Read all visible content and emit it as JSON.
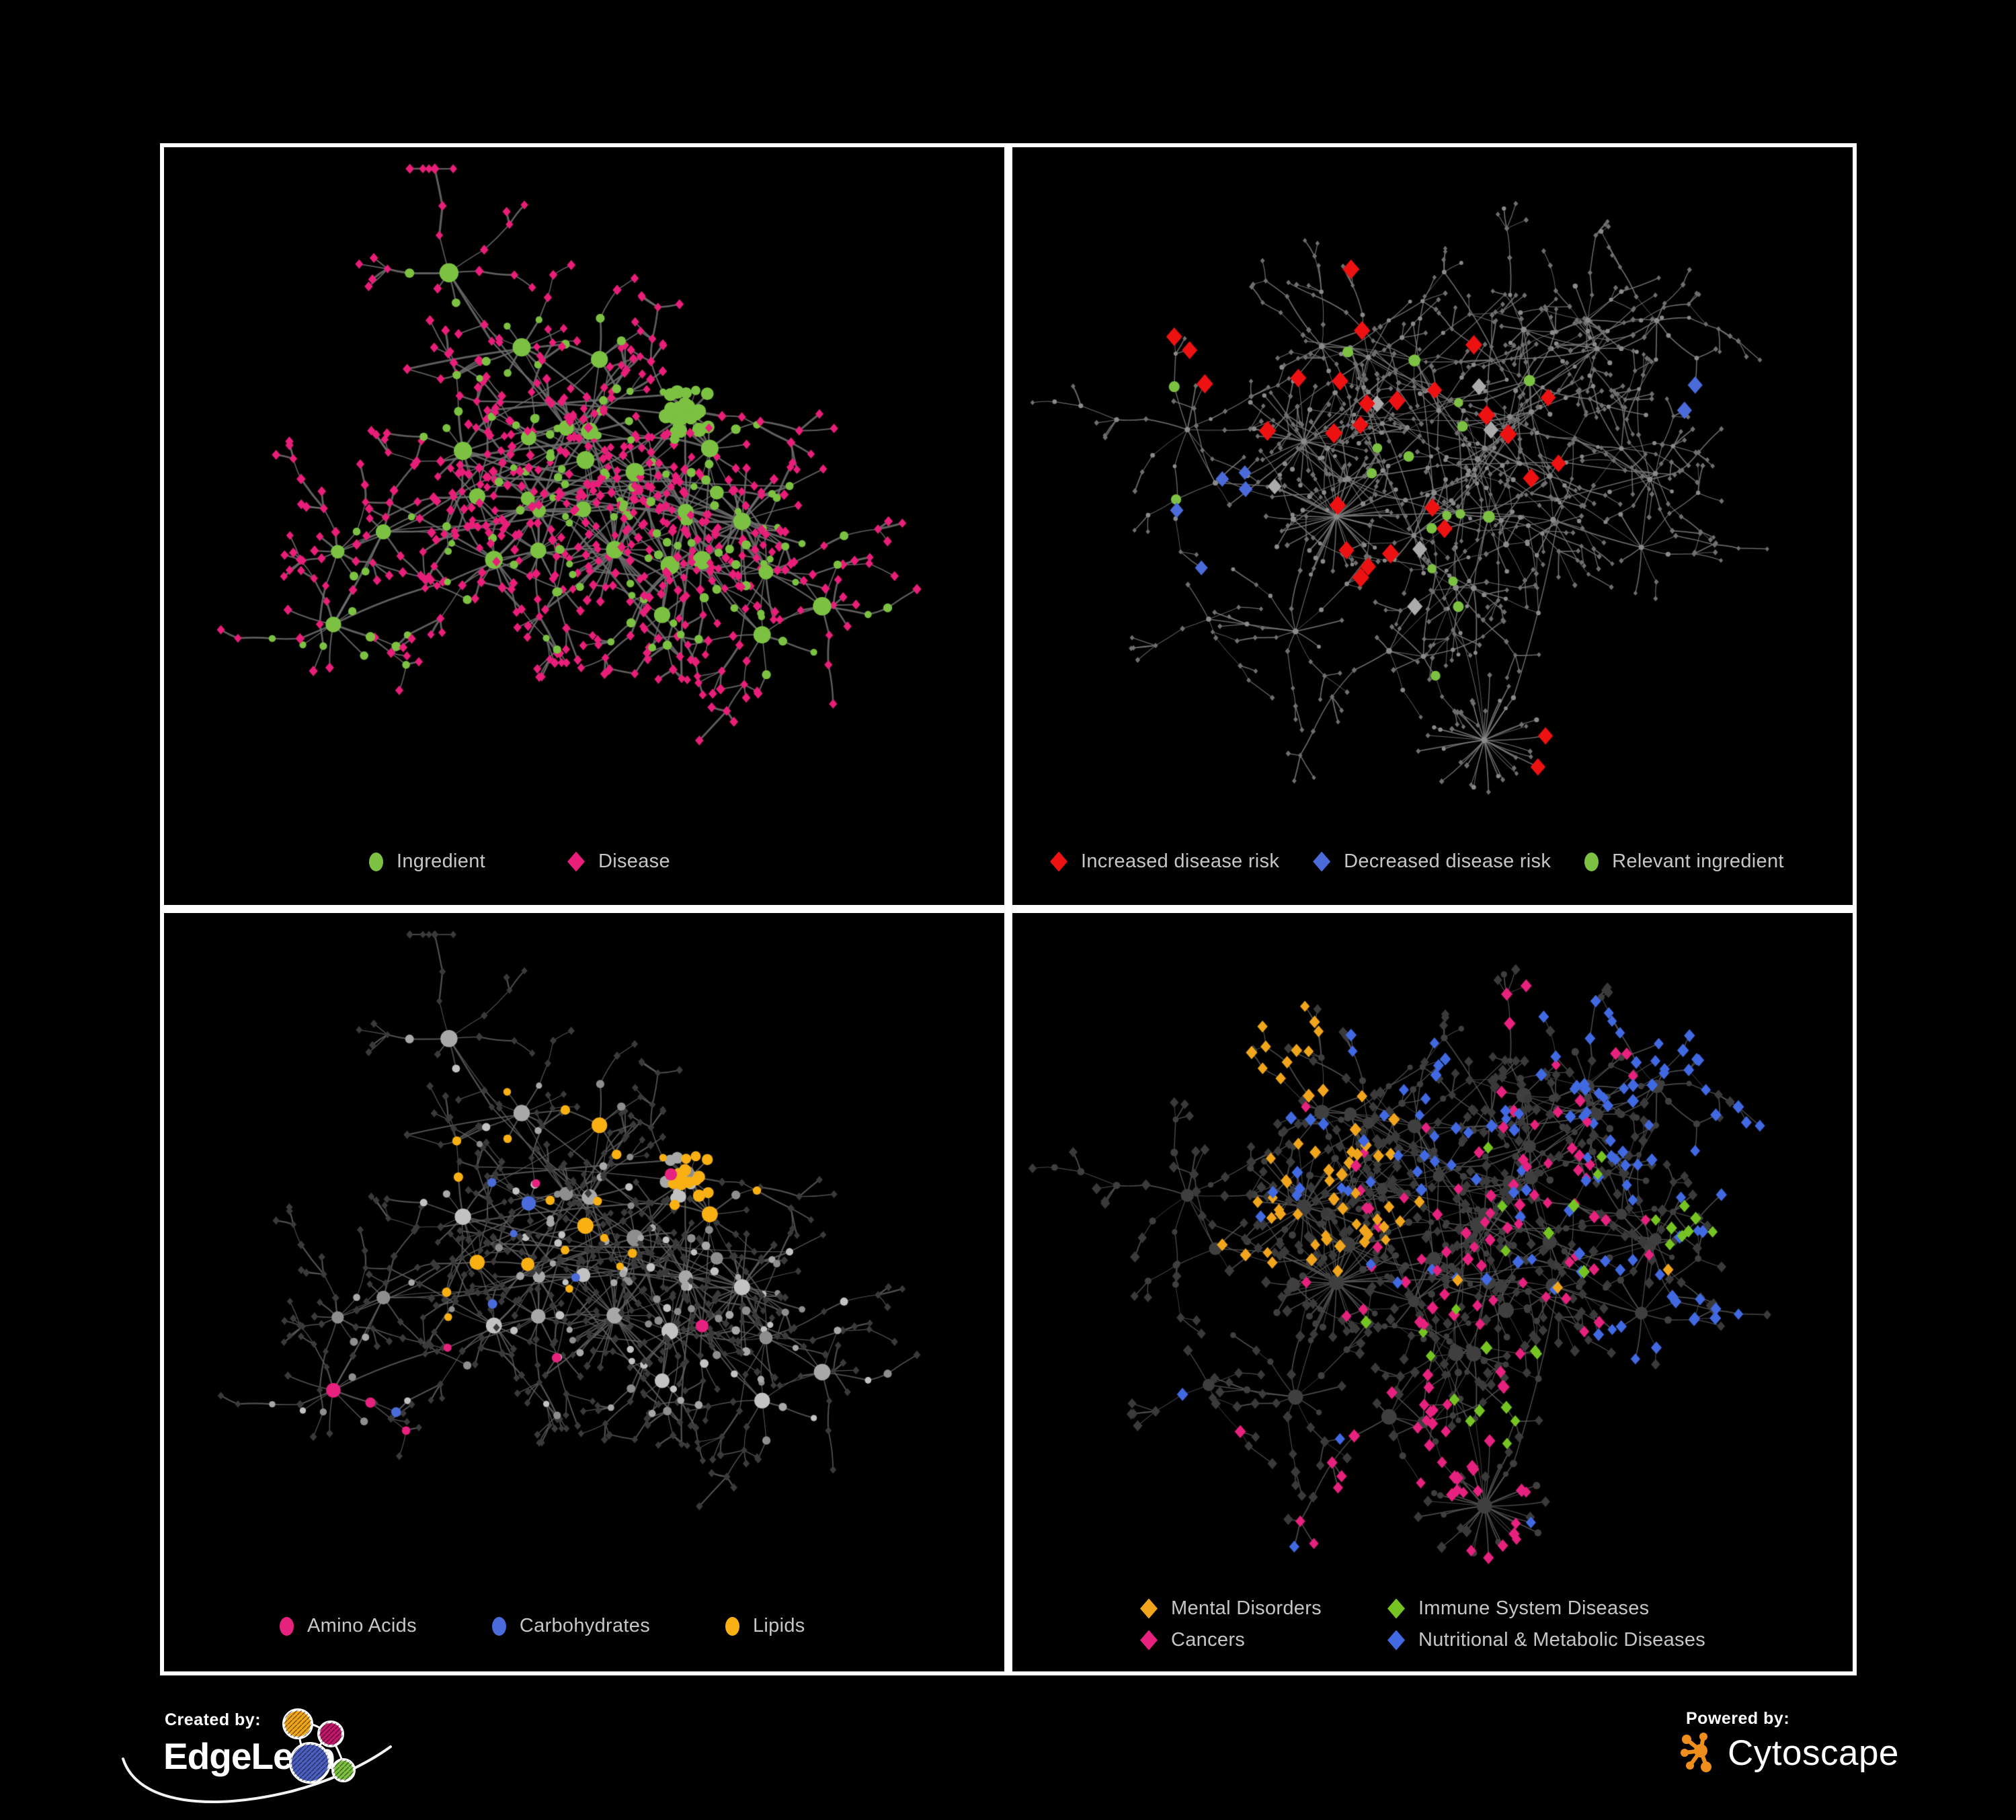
{
  "page": {
    "background": "#000000",
    "panel_border": "#ffffff",
    "legend_text_color": "#c6c6c6"
  },
  "panels": [
    {
      "name": "ingredient-disease-network",
      "legend": [
        {
          "shape": "circle",
          "color": "#7cc142",
          "label": "Ingredient"
        },
        {
          "shape": "diamond",
          "color": "#e81e79",
          "label": "Disease"
        }
      ],
      "net": {
        "layout": "A",
        "style": "ingredient_disease",
        "edge_color": "#6f6f6f",
        "edge_width": 2.1,
        "circle_color": "#7cc142",
        "diamond_color": "#e81e79"
      }
    },
    {
      "name": "disease-risk-network",
      "legend": [
        {
          "shape": "diamond",
          "color": "#ee1111",
          "label": "Increased disease risk"
        },
        {
          "shape": "diamond",
          "color": "#4a6bd9",
          "label": "Decreased disease risk"
        },
        {
          "shape": "circle",
          "color": "#7cc142",
          "label": "Relevant ingredient"
        }
      ],
      "net": {
        "layout": "B",
        "style": "risk",
        "edge_color": "#7b7b7b",
        "edge_width": 1.2,
        "base_circle": "#8a8a8a",
        "base_diamond": "#6f6f6f",
        "red": "#ee1111",
        "blue": "#4a6bd9",
        "green": "#7cc142",
        "silver": "#ababab"
      }
    },
    {
      "name": "nutrient-class-network",
      "legend": [
        {
          "shape": "circle",
          "color": "#e6217e",
          "label": "Amino Acids"
        },
        {
          "shape": "circle",
          "color": "#4a6bd9",
          "label": "Carbohydrates"
        },
        {
          "shape": "circle",
          "color": "#f9b013",
          "label": "Lipids"
        }
      ],
      "net": {
        "layout": "A",
        "style": "nutrients",
        "edge_color": "#5f5f5f",
        "edge_width": 1.5,
        "gray_circles": [
          "#8e8e8e",
          "#a8a8a8",
          "#c2c2c2"
        ],
        "diamond_color": "#3a3a3a",
        "amino": "#e6217e",
        "carb": "#4a6bd9",
        "lipid": "#f9b013"
      }
    },
    {
      "name": "disease-category-network",
      "legend": [
        {
          "shape": "diamond",
          "color": "#f0a51c",
          "label": "Mental Disorders"
        },
        {
          "shape": "diamond",
          "color": "#76c421",
          "label": "Immune System Diseases"
        },
        {
          "shape": "diamond",
          "color": "#e6217e",
          "label": "Cancers"
        },
        {
          "shape": "diamond",
          "color": "#4169e1",
          "label": "Nutritional & Metabolic Diseases"
        }
      ],
      "net": {
        "layout": "B",
        "style": "categories",
        "edge_color": "#575757",
        "edge_width": 1.2,
        "circle_color": "#3f3f3f",
        "diamond_color": "#3a3a3a",
        "mental": "#f0a51c",
        "immune": "#76c421",
        "cancer": "#e6217e",
        "metabolic": "#4169e1"
      }
    }
  ],
  "layouts": {
    "A": {
      "seed": 42,
      "clusters": 30,
      "spokes_min": 4,
      "spokes_max": 12,
      "chain_p": 0.5,
      "diamond_p": 0.68,
      "superstars": 2,
      "blob": true,
      "core_links": 46
    },
    "B": {
      "seed": 77,
      "clusters": 40,
      "spokes_min": 3,
      "spokes_max": 9,
      "chain_p": 0.72,
      "diamond_p": 0.62,
      "superstars": 3,
      "blob": false,
      "core_links": 24
    }
  },
  "footer": {
    "created_by": "Created by:",
    "brand": "EdgeLeap",
    "powered_by": "Powered by:",
    "engine": "Cytoscape",
    "edgeleap_logo_colors": {
      "orange": "#f2a71b",
      "magenta": "#c2186b",
      "blue": "#4a5fc1",
      "green": "#7dc242"
    },
    "cytoscape_orange": "#ef8e1c"
  }
}
